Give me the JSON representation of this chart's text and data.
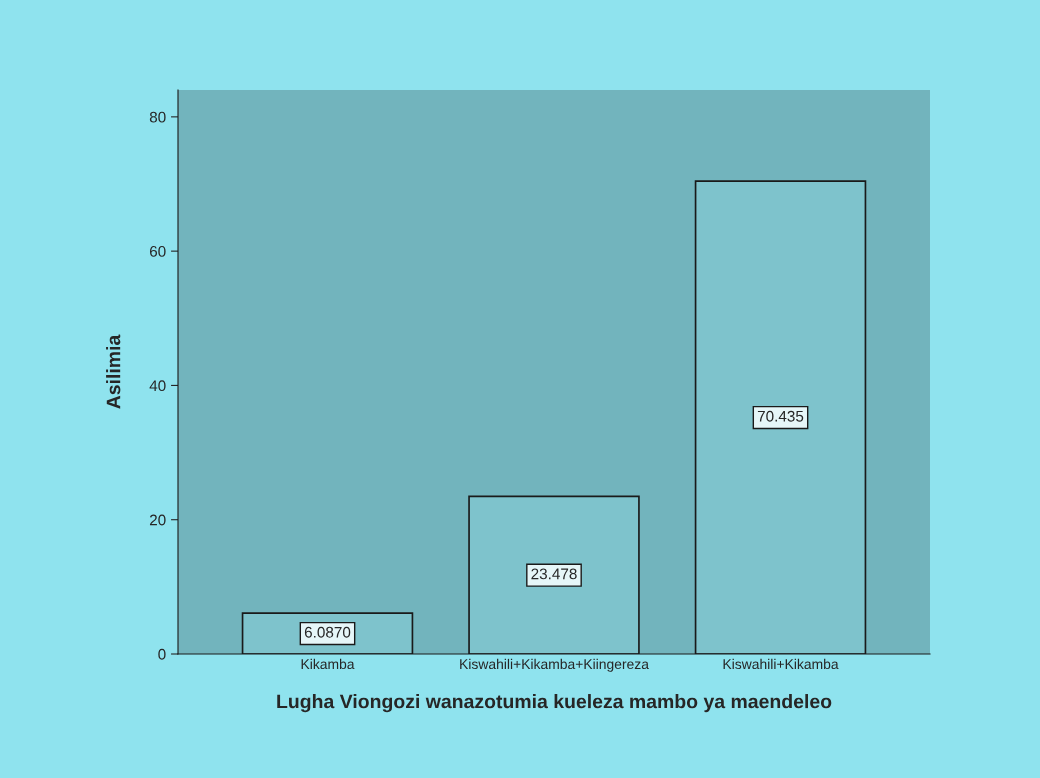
{
  "chart_data": {
    "type": "bar",
    "categories": [
      "Kikamba",
      "Kiswahili+Kikamba+Kiingereza",
      "Kiswahili+Kikamba"
    ],
    "values": [
      6.087,
      23.478,
      70.435
    ],
    "value_labels": [
      "6.0870",
      "23.478",
      "70.435"
    ],
    "color": "#7ec3cc",
    "xlabel": "Lugha Viongozi wanazotumia kueleza mambo ya maendeleo",
    "ylabel": "Asilimia",
    "ylim": [
      0,
      84
    ],
    "yticks": [
      0,
      20,
      40,
      60,
      80
    ],
    "grid": false,
    "legend": false
  }
}
